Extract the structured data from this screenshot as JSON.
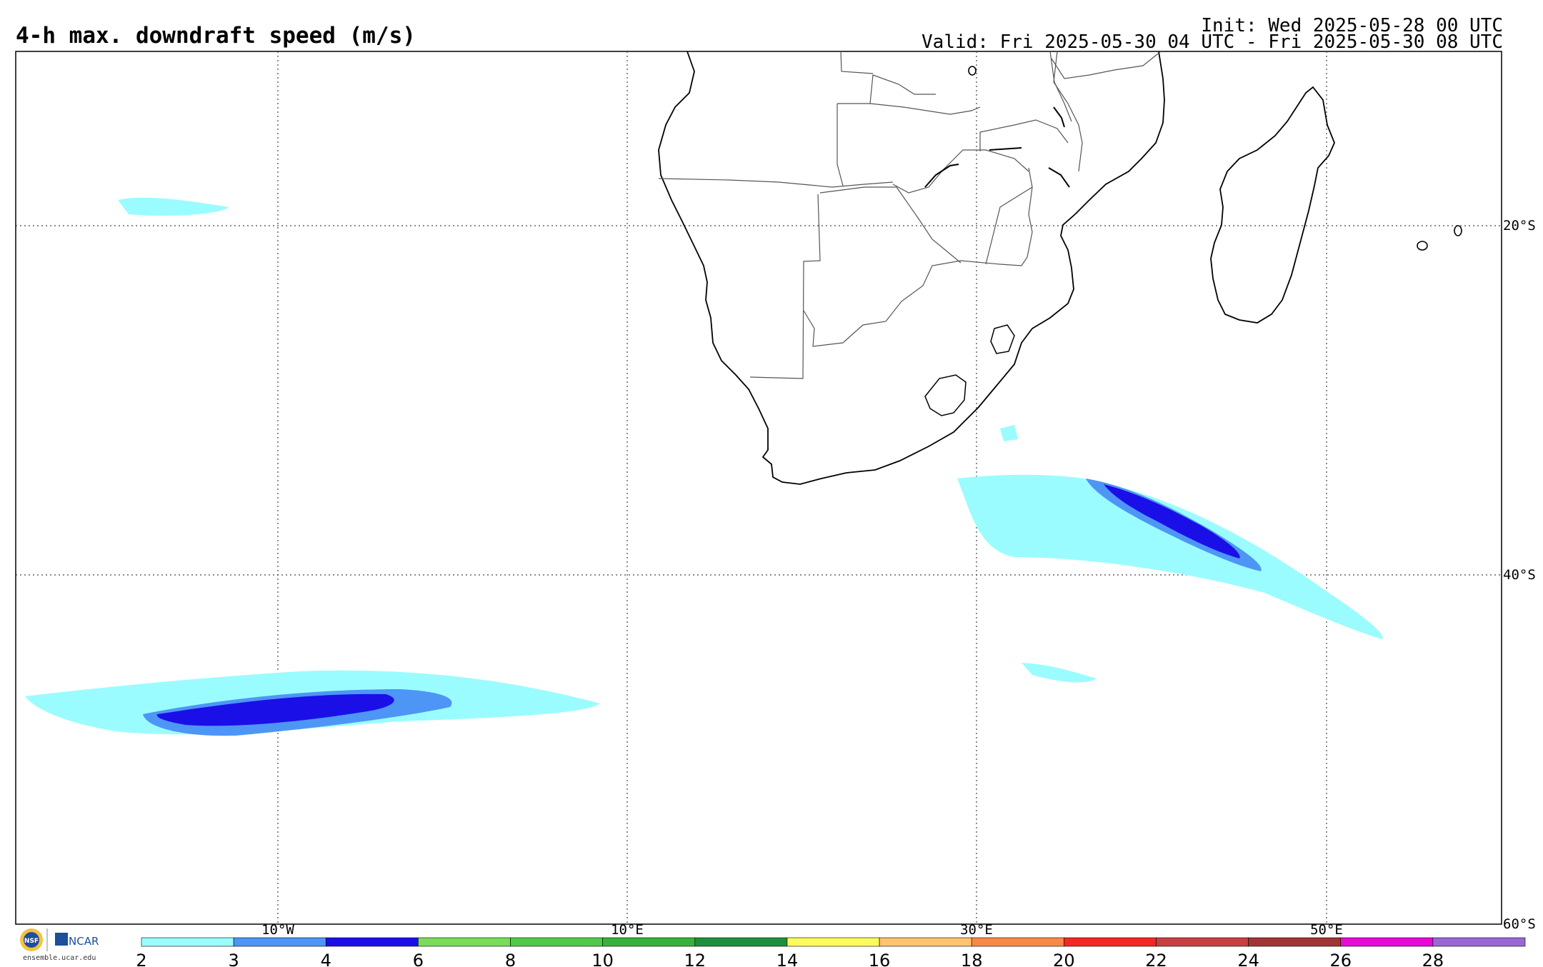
{
  "header": {
    "title": "4-h max. downdraft speed (m/s)",
    "init": "Init: Wed 2025-05-28 00 UTC",
    "valid": "Valid: Fri 2025-05-30 04 UTC - Fri 2025-05-30 08 UTC"
  },
  "map": {
    "lon_labels": [
      "10°W",
      "10°E",
      "30°E",
      "50°E"
    ],
    "lat_labels": [
      "20°S",
      "40°S",
      "60°S"
    ],
    "gridlines": "dotted"
  },
  "colorbar": {
    "ticks": [
      "2",
      "3",
      "4",
      "6",
      "8",
      "10",
      "12",
      "14",
      "16",
      "18",
      "20",
      "22",
      "24",
      "26",
      "28"
    ],
    "colors": [
      "#9bfcff",
      "#4d96f5",
      "#1b0fe8",
      "#7adc5a",
      "#50c84a",
      "#38b03c",
      "#1f8f3a",
      "#fdfb5b",
      "#fdc36e",
      "#f88848",
      "#f42626",
      "#c94040",
      "#a33434",
      "#e60bd7",
      "#9b67d4"
    ]
  },
  "logo": {
    "org1": "NSF",
    "org2": "NCAR",
    "url": "ensemble.ucar.edu"
  }
}
